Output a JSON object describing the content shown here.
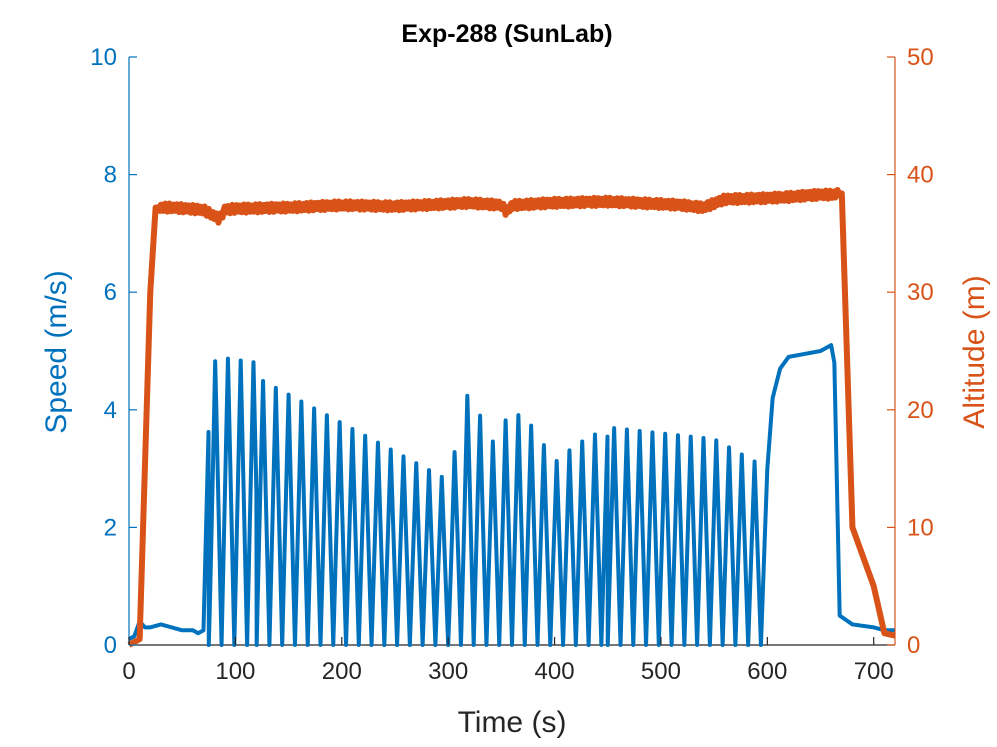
{
  "chart_data": {
    "type": "line",
    "title": "Exp-288 (SunLab)",
    "xlabel": "Time (s)",
    "ylabel_left": "Speed (m/s)",
    "ylabel_right": "Altitude (m)",
    "xlim": [
      0,
      720
    ],
    "ylim_left": [
      0,
      10
    ],
    "ylim_right": [
      0,
      50
    ],
    "xticks": [
      0,
      100,
      200,
      300,
      400,
      500,
      600,
      700
    ],
    "yticks_left": [
      0,
      2,
      4,
      6,
      8,
      10
    ],
    "yticks_right": [
      0,
      10,
      20,
      30,
      40,
      50
    ],
    "grid": false,
    "colors": {
      "speed": "#0072BD",
      "altitude": "#D95319"
    },
    "series": [
      {
        "axis": "left",
        "oscillation_bands": [
          [
            75,
            120,
            0,
            4.8
          ],
          [
            120,
            300,
            0,
            4.4
          ],
          [
            300,
            450,
            0,
            3.8
          ],
          [
            450,
            600,
            0,
            3.6
          ]
        ],
        "x": [
          0,
          5,
          10,
          15,
          20,
          30,
          40,
          50,
          60,
          65,
          70,
          75,
          78,
          82,
          120,
          125,
          300,
          320,
          340,
          360,
          380,
          400,
          420,
          450,
          500,
          550,
          590,
          600,
          605,
          612,
          620,
          650,
          660,
          663,
          668,
          680,
          700,
          710,
          720
        ],
        "y": [
          0.1,
          0.15,
          0.4,
          0.3,
          0.3,
          0.35,
          0.3,
          0.25,
          0.25,
          0.2,
          0.25,
          3.8,
          4.6,
          4.9,
          4.8,
          4.5,
          2.8,
          4.4,
          3.4,
          4.0,
          3.7,
          3.1,
          3.4,
          3.7,
          3.6,
          3.5,
          3.1,
          3.0,
          4.2,
          4.7,
          4.9,
          5.0,
          5.1,
          4.8,
          0.5,
          0.35,
          0.3,
          0.25,
          0.25
        ]
      },
      {
        "axis": "right",
        "x": [
          0,
          10,
          20,
          25,
          40,
          70,
          80,
          85,
          90,
          100,
          150,
          200,
          250,
          300,
          320,
          350,
          355,
          360,
          400,
          450,
          500,
          520,
          540,
          560,
          600,
          620,
          650,
          660,
          670,
          680,
          700,
          710,
          720
        ],
        "y": [
          0,
          0.5,
          30,
          37.2,
          37.2,
          37.0,
          36.5,
          36.2,
          37.0,
          37.1,
          37.2,
          37.4,
          37.3,
          37.5,
          37.6,
          37.4,
          36.8,
          37.4,
          37.6,
          37.7,
          37.5,
          37.4,
          37.2,
          37.9,
          38.0,
          38.1,
          38.3,
          38.3,
          38.4,
          10,
          5,
          1,
          0.8
        ]
      }
    ]
  }
}
